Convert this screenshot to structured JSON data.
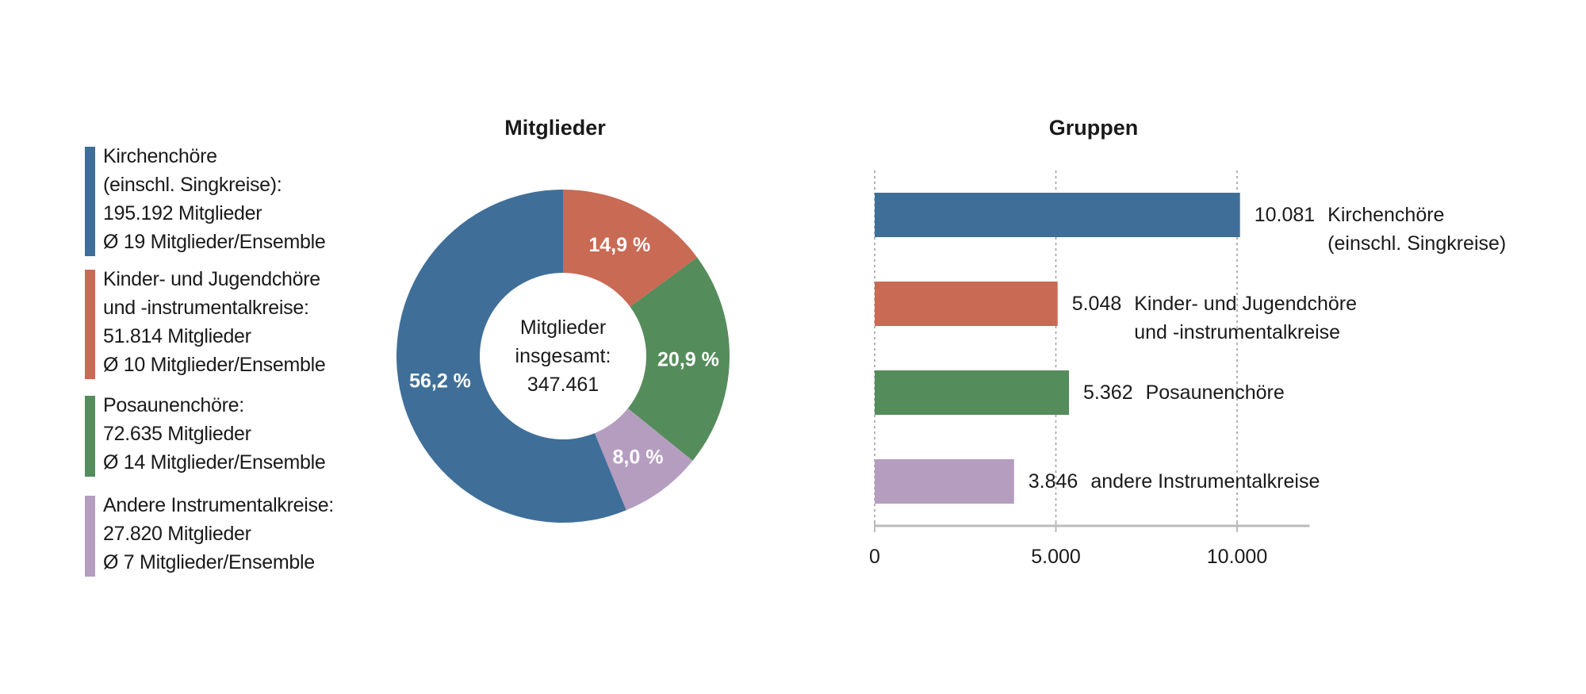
{
  "colors": {
    "kirchen": "#3f6f99",
    "kinder": "#c96a55",
    "posaunen": "#558c5b",
    "andere": "#b59dc0"
  },
  "legend": [
    {
      "lines": [
        "Kirchenchöre",
        "(einschl. Singkreise):",
        "195.192 Mitglieder",
        "Ø 19 Mitglieder/Ensemble"
      ],
      "color": "#3f6f99"
    },
    {
      "lines": [
        "Kinder- und Jugendchöre",
        "und -instrumentalkreise:",
        "51.814 Mitglieder",
        "Ø 10 Mitglieder/Ensemble"
      ],
      "color": "#c96a55"
    },
    {
      "lines": [
        "Posaunenchöre:",
        "72.635 Mitglieder",
        "Ø 14 Mitglieder/Ensemble"
      ],
      "color": "#558c5b"
    },
    {
      "lines": [
        "Andere Instrumentalkreise:",
        "27.820 Mitglieder",
        "Ø 7 Mitglieder/Ensemble"
      ],
      "color": "#b59dc0"
    }
  ],
  "chart_data": [
    {
      "type": "pie",
      "variant": "donut",
      "title": "Mitglieder",
      "center_label": [
        "Mitglieder",
        "insgesamt:",
        "347.461"
      ],
      "slices": [
        {
          "label": "14,9 %",
          "value": 14.9,
          "color": "#c96a55"
        },
        {
          "label": "20,9 %",
          "value": 20.9,
          "color": "#558c5b"
        },
        {
          "label": "8,0 %",
          "value": 8.0,
          "color": "#b59dc0"
        },
        {
          "label": "56,2 %",
          "value": 56.2,
          "color": "#3f6f99"
        }
      ]
    },
    {
      "type": "bar",
      "orientation": "horizontal",
      "title": "Gruppen",
      "categories": [
        [
          "Kirchenchöre",
          "(einschl. Singkreise)"
        ],
        [
          "Kinder- und Jugendchöre",
          "und -instrumentalkreise"
        ],
        [
          "Posaunenchöre"
        ],
        [
          "andere Instrumentalkreise"
        ]
      ],
      "values": [
        10081,
        5048,
        5362,
        3846
      ],
      "value_labels": [
        "10.081",
        "5.048",
        "5.362",
        "3.846"
      ],
      "colors": [
        "#3f6f99",
        "#c96a55",
        "#558c5b",
        "#b59dc0"
      ],
      "xlim": [
        0,
        12000
      ],
      "xticks": [
        0,
        5000,
        10000
      ],
      "xtick_labels": [
        "0",
        "5.000",
        "10.000"
      ],
      "grid": "vertical dotted"
    }
  ]
}
